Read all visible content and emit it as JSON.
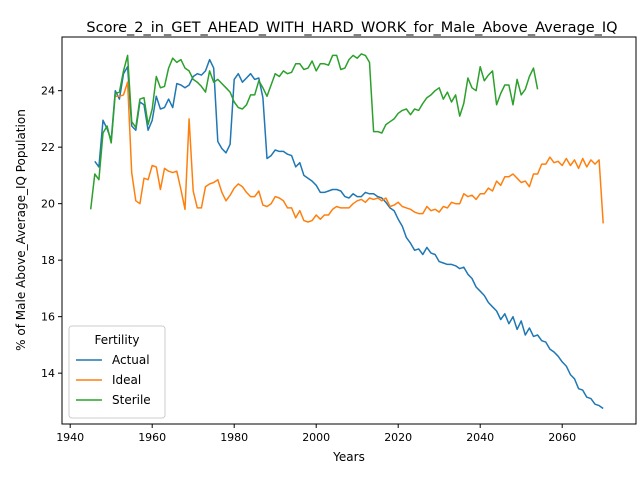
{
  "chart_data": {
    "type": "line",
    "title": "Score_2_in_GET_AHEAD_WITH_HARD_WORK_for_Male_Above_Average_IQ",
    "xlabel": "Years",
    "ylabel": "% of Male Above_Average_IQ Population",
    "xlim": [
      1938,
      2078
    ],
    "ylim": [
      12.2,
      25.9
    ],
    "xticks": [
      1940,
      1960,
      1980,
      2000,
      2020,
      2040,
      2060
    ],
    "yticks": [
      14,
      16,
      18,
      20,
      22,
      24
    ],
    "grid": false,
    "legend": {
      "title": "Fertility",
      "placement": "lower-left"
    },
    "series": [
      {
        "name": "Actual",
        "color": "#1f77b4",
        "x": [
          1946,
          1947,
          1948,
          1949,
          1950,
          1951,
          1952,
          1953,
          1954,
          1955,
          1956,
          1957,
          1958,
          1959,
          1960,
          1961,
          1962,
          1963,
          1964,
          1965,
          1966,
          1967,
          1968,
          1969,
          1970,
          1971,
          1972,
          1973,
          1974,
          1975,
          1976,
          1977,
          1978,
          1979,
          1980,
          1981,
          1982,
          1983,
          1984,
          1985,
          1986,
          1987,
          1988,
          1989,
          1990,
          1991,
          1992,
          1993,
          1994,
          1995,
          1996,
          1997,
          1998,
          1999,
          2000,
          2001,
          2002,
          2003,
          2004,
          2005,
          2006,
          2007,
          2008,
          2009,
          2010,
          2011,
          2012,
          2013,
          2014,
          2015,
          2016,
          2017,
          2018,
          2019,
          2020,
          2021,
          2022,
          2023,
          2024,
          2025,
          2026,
          2027,
          2028,
          2029,
          2030,
          2031,
          2032,
          2033,
          2034,
          2035,
          2036,
          2037,
          2038,
          2039,
          2040,
          2041,
          2042,
          2043,
          2044,
          2045,
          2046,
          2047,
          2048,
          2049,
          2050,
          2051,
          2052,
          2053,
          2054,
          2055,
          2056,
          2057,
          2058,
          2059,
          2060,
          2061,
          2062,
          2063,
          2064,
          2065,
          2066,
          2067,
          2068,
          2069,
          2070
        ],
        "values": [
          21.5,
          21.3,
          22.95,
          22.65,
          22.25,
          24.0,
          23.7,
          24.6,
          24.85,
          22.75,
          22.6,
          23.6,
          23.5,
          22.6,
          22.95,
          23.8,
          23.35,
          23.4,
          23.7,
          23.4,
          24.25,
          24.2,
          24.1,
          24.2,
          24.5,
          24.6,
          24.55,
          24.7,
          25.1,
          24.8,
          22.2,
          21.95,
          21.8,
          22.1,
          24.4,
          24.6,
          24.3,
          24.45,
          24.6,
          24.4,
          24.45,
          23.75,
          21.6,
          21.7,
          21.9,
          21.85,
          21.85,
          21.75,
          21.7,
          21.3,
          21.45,
          21.0,
          20.9,
          20.8,
          20.65,
          20.4,
          20.4,
          20.45,
          20.5,
          20.5,
          20.45,
          20.25,
          20.2,
          20.35,
          20.25,
          20.25,
          20.4,
          20.35,
          20.35,
          20.25,
          20.2,
          20.05,
          19.85,
          19.75,
          19.45,
          19.2,
          18.8,
          18.6,
          18.35,
          18.4,
          18.2,
          18.45,
          18.25,
          18.2,
          17.95,
          17.9,
          17.85,
          17.85,
          17.8,
          17.7,
          17.75,
          17.5,
          17.35,
          17.05,
          16.9,
          16.75,
          16.5,
          16.35,
          16.2,
          15.9,
          16.1,
          15.75,
          16.0,
          15.55,
          15.85,
          15.35,
          15.6,
          15.3,
          15.35,
          15.15,
          15.1,
          14.85,
          14.75,
          14.6,
          14.4,
          14.25,
          13.95,
          13.8,
          13.45,
          13.4,
          13.15,
          13.1,
          12.9,
          12.85,
          12.75
        ]
      },
      {
        "name": "Ideal",
        "color": "#ff7f0e",
        "x": [
          1951,
          1952,
          1953,
          1954,
          1955,
          1956,
          1957,
          1958,
          1959,
          1960,
          1961,
          1962,
          1963,
          1964,
          1965,
          1966,
          1967,
          1968,
          1969,
          1970,
          1971,
          1972,
          1973,
          1974,
          1975,
          1976,
          1977,
          1978,
          1979,
          1980,
          1981,
          1982,
          1983,
          1984,
          1985,
          1986,
          1987,
          1988,
          1989,
          1990,
          1991,
          1992,
          1993,
          1994,
          1995,
          1996,
          1997,
          1998,
          1999,
          2000,
          2001,
          2002,
          2003,
          2004,
          2005,
          2006,
          2007,
          2008,
          2009,
          2010,
          2011,
          2012,
          2013,
          2014,
          2015,
          2016,
          2017,
          2018,
          2019,
          2020,
          2021,
          2022,
          2023,
          2024,
          2025,
          2026,
          2027,
          2028,
          2029,
          2030,
          2031,
          2032,
          2033,
          2034,
          2035,
          2036,
          2037,
          2038,
          2039,
          2040,
          2041,
          2042,
          2043,
          2044,
          2045,
          2046,
          2047,
          2048,
          2049,
          2050,
          2051,
          2052,
          2053,
          2054,
          2055,
          2056,
          2057,
          2058,
          2059,
          2060,
          2061,
          2062,
          2063,
          2064,
          2065,
          2066,
          2067,
          2068,
          2069,
          2070
        ],
        "values": [
          23.8,
          23.8,
          23.85,
          24.3,
          21.1,
          20.1,
          20.0,
          20.9,
          20.85,
          21.35,
          21.3,
          20.5,
          21.25,
          21.15,
          21.1,
          21.15,
          20.5,
          19.8,
          23.0,
          20.45,
          19.85,
          19.85,
          20.6,
          20.7,
          20.75,
          20.85,
          20.4,
          20.1,
          20.3,
          20.55,
          20.7,
          20.6,
          20.4,
          20.25,
          20.25,
          20.45,
          19.95,
          19.9,
          20.0,
          20.25,
          20.2,
          20.1,
          19.85,
          19.85,
          19.5,
          19.75,
          19.4,
          19.35,
          19.4,
          19.6,
          19.45,
          19.6,
          19.6,
          19.8,
          19.9,
          19.85,
          19.85,
          19.85,
          20.0,
          20.1,
          20.15,
          20.05,
          20.2,
          20.15,
          20.2,
          20.1,
          20.2,
          19.9,
          19.95,
          20.05,
          19.9,
          19.85,
          19.8,
          19.7,
          19.65,
          19.65,
          19.9,
          19.75,
          19.8,
          19.7,
          19.9,
          19.85,
          20.05,
          20.0,
          20.0,
          20.35,
          20.25,
          20.3,
          20.15,
          20.35,
          20.35,
          20.55,
          20.45,
          20.8,
          20.65,
          20.95,
          20.95,
          21.05,
          20.9,
          20.75,
          20.8,
          20.6,
          21.05,
          21.05,
          21.4,
          21.4,
          21.65,
          21.45,
          21.5,
          21.35,
          21.6,
          21.35,
          21.55,
          21.25,
          21.6,
          21.3,
          21.55,
          21.4,
          21.55,
          19.3
        ]
      },
      {
        "name": "Sterile",
        "color": "#2ca02c",
        "x": [
          1945,
          1946,
          1947,
          1948,
          1949,
          1950,
          1951,
          1952,
          1953,
          1954,
          1955,
          1956,
          1957,
          1958,
          1959,
          1960,
          1961,
          1962,
          1963,
          1964,
          1965,
          1966,
          1967,
          1968,
          1969,
          1970,
          1971,
          1972,
          1973,
          1974,
          1975,
          1976,
          1977,
          1978,
          1979,
          1980,
          1981,
          1982,
          1983,
          1984,
          1985,
          1986,
          1987,
          1988,
          1989,
          1990,
          1991,
          1992,
          1993,
          1994,
          1995,
          1996,
          1997,
          1998,
          1999,
          2000,
          2001,
          2002,
          2003,
          2004,
          2005,
          2006,
          2007,
          2008,
          2009,
          2010,
          2011,
          2012,
          2013,
          2014,
          2015,
          2016,
          2017,
          2018,
          2019,
          2020,
          2021,
          2022,
          2023,
          2024,
          2025,
          2026,
          2027,
          2028,
          2029,
          2030,
          2031,
          2032,
          2033,
          2034,
          2035,
          2036,
          2037,
          2038,
          2039,
          2040,
          2041,
          2042,
          2043,
          2044,
          2045,
          2046,
          2047,
          2048,
          2049,
          2050,
          2051,
          2052,
          2053,
          2054
        ],
        "values": [
          19.8,
          21.05,
          20.85,
          22.5,
          22.75,
          22.15,
          23.9,
          23.95,
          24.7,
          25.25,
          22.9,
          22.7,
          23.7,
          23.75,
          22.8,
          23.35,
          24.5,
          24.1,
          24.15,
          24.8,
          25.15,
          25.0,
          25.1,
          24.8,
          24.7,
          24.4,
          24.3,
          24.15,
          23.95,
          24.7,
          24.3,
          24.4,
          24.25,
          24.1,
          23.95,
          23.6,
          23.4,
          23.35,
          23.5,
          23.85,
          23.85,
          24.35,
          24.1,
          23.8,
          24.2,
          24.6,
          24.5,
          24.7,
          24.6,
          24.65,
          24.95,
          24.95,
          24.75,
          24.8,
          25.05,
          24.7,
          24.95,
          24.95,
          24.9,
          25.25,
          25.25,
          24.75,
          24.8,
          25.1,
          25.25,
          25.15,
          25.3,
          25.25,
          25.0,
          22.55,
          22.55,
          22.5,
          22.8,
          22.9,
          23.0,
          23.2,
          23.3,
          23.35,
          23.15,
          23.35,
          23.3,
          23.55,
          23.75,
          23.85,
          24.0,
          24.1,
          23.7,
          23.95,
          23.6,
          23.85,
          23.1,
          23.55,
          24.45,
          24.1,
          24.0,
          24.85,
          24.35,
          24.55,
          24.7,
          23.5,
          23.9,
          24.2,
          24.2,
          23.5,
          24.4,
          23.85,
          24.05,
          24.5,
          24.8,
          24.05
        ]
      }
    ]
  }
}
